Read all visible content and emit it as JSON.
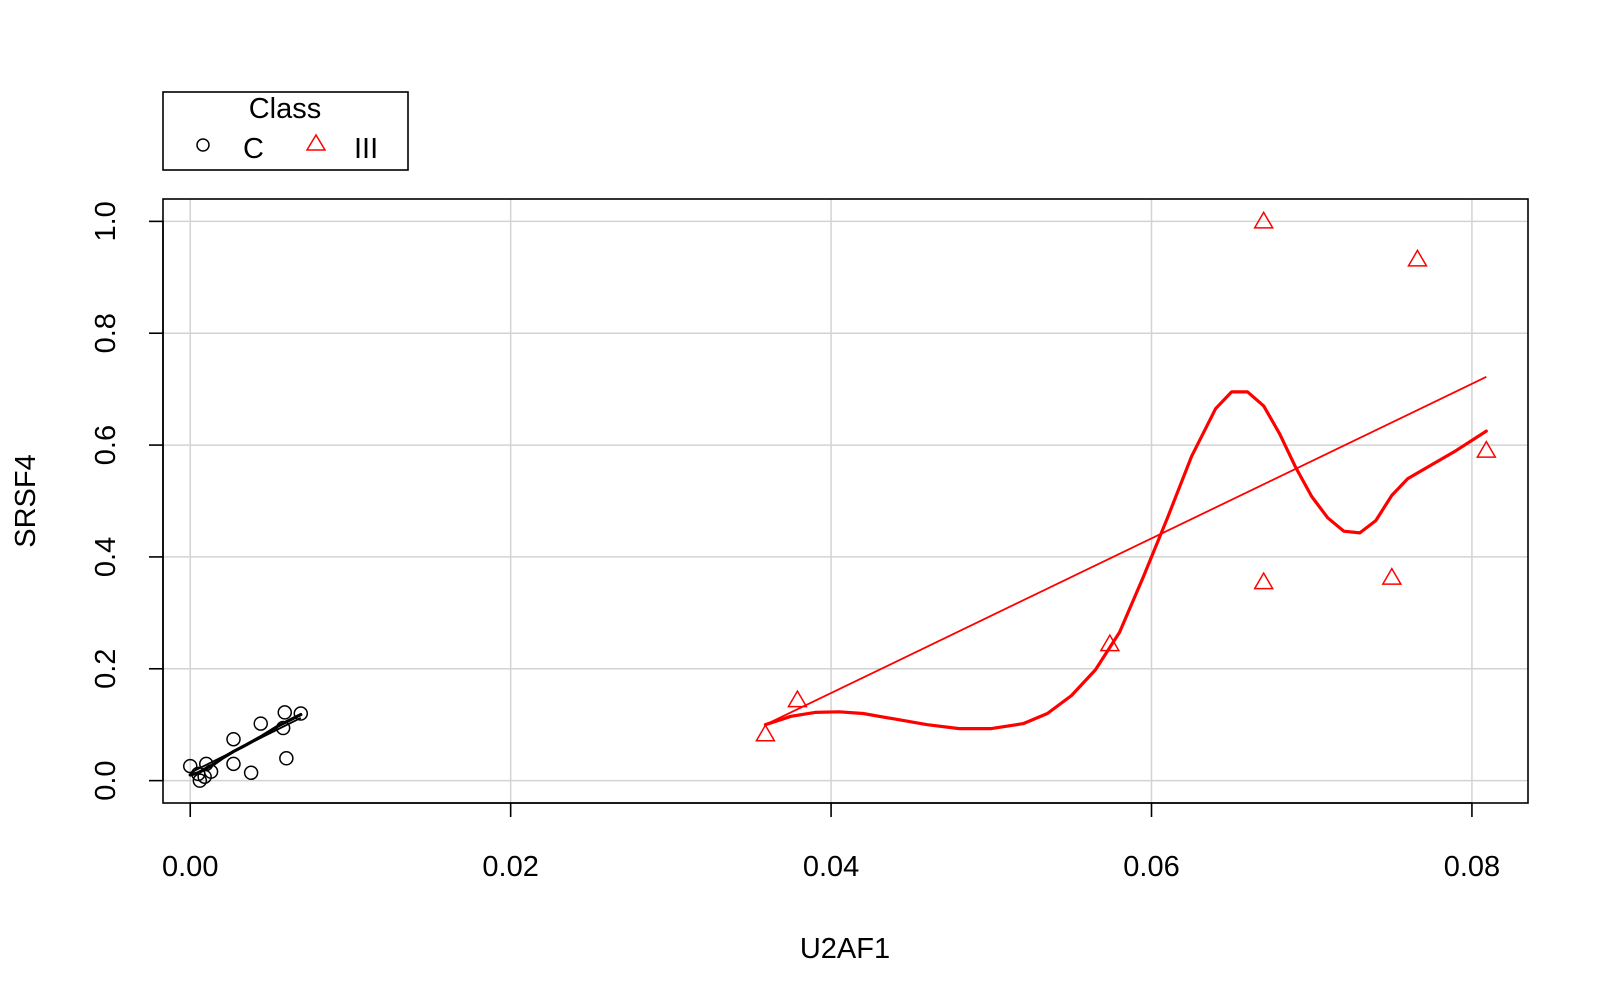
{
  "chart_data": {
    "type": "scatter",
    "xlabel": "U2AF1",
    "ylabel": "SRSF4",
    "xlim": [
      -0.0017,
      0.0835
    ],
    "ylim": [
      -0.04,
      1.04
    ],
    "x_ticks": [
      0.0,
      0.02,
      0.04,
      0.06,
      0.08
    ],
    "x_tick_labels": [
      "0.00",
      "0.02",
      "0.04",
      "0.06",
      "0.08"
    ],
    "y_ticks": [
      0.0,
      0.2,
      0.4,
      0.6,
      0.8,
      1.0
    ],
    "y_tick_labels": [
      "0.0",
      "0.2",
      "0.4",
      "0.6",
      "0.8",
      "1.0"
    ],
    "grid": true,
    "legend": {
      "title": "Class",
      "placement": "top-left, outside plot",
      "entries": [
        {
          "label": "C",
          "color": "#000000",
          "marker": "circle"
        },
        {
          "label": "III",
          "color": "#ff0000",
          "marker": "triangle"
        }
      ]
    },
    "series": [
      {
        "name": "C",
        "color": "#000000",
        "marker": "circle",
        "x": [
          0.0,
          0.0005,
          0.0006,
          0.0009,
          0.001,
          0.0013,
          0.0027,
          0.0027,
          0.0038,
          0.0044,
          0.0058,
          0.0059,
          0.006,
          0.0069
        ],
        "y": [
          0.026,
          0.012,
          0.0,
          0.007,
          0.03,
          0.016,
          0.074,
          0.03,
          0.014,
          0.102,
          0.094,
          0.122,
          0.04,
          0.12
        ],
        "fit_line": {
          "x": [
            0.0,
            0.0069
          ],
          "y": [
            0.014,
            0.112
          ]
        },
        "smooth": {
          "x": [
            0.0,
            0.0005,
            0.001,
            0.0015,
            0.002,
            0.0027,
            0.0035,
            0.0045,
            0.0055,
            0.0062,
            0.0069
          ],
          "y": [
            0.01,
            0.014,
            0.022,
            0.03,
            0.04,
            0.052,
            0.064,
            0.08,
            0.098,
            0.108,
            0.118
          ]
        }
      },
      {
        "name": "III",
        "color": "#ff0000",
        "marker": "triangle",
        "x": [
          0.0359,
          0.0379,
          0.0574,
          0.067,
          0.067,
          0.075,
          0.0766,
          0.0809
        ],
        "y": [
          0.083,
          0.144,
          0.244,
          1.0,
          0.355,
          0.363,
          0.932,
          0.59
        ],
        "fit_line": {
          "x": [
            0.0359,
            0.0809
          ],
          "y": [
            0.1,
            0.722
          ]
        },
        "smooth": {
          "x": [
            0.0359,
            0.0375,
            0.039,
            0.0405,
            0.042,
            0.044,
            0.046,
            0.048,
            0.05,
            0.052,
            0.0535,
            0.055,
            0.0565,
            0.058,
            0.0595,
            0.061,
            0.0625,
            0.064,
            0.065,
            0.066,
            0.067,
            0.068,
            0.069,
            0.07,
            0.071,
            0.072,
            0.073,
            0.074,
            0.075,
            0.076,
            0.0775,
            0.079,
            0.0809
          ],
          "y": [
            0.1,
            0.115,
            0.122,
            0.123,
            0.12,
            0.11,
            0.1,
            0.093,
            0.093,
            0.102,
            0.12,
            0.152,
            0.198,
            0.265,
            0.365,
            0.47,
            0.58,
            0.665,
            0.695,
            0.695,
            0.67,
            0.62,
            0.56,
            0.508,
            0.47,
            0.446,
            0.443,
            0.465,
            0.51,
            0.54,
            0.565,
            0.59,
            0.625
          ]
        }
      }
    ]
  }
}
